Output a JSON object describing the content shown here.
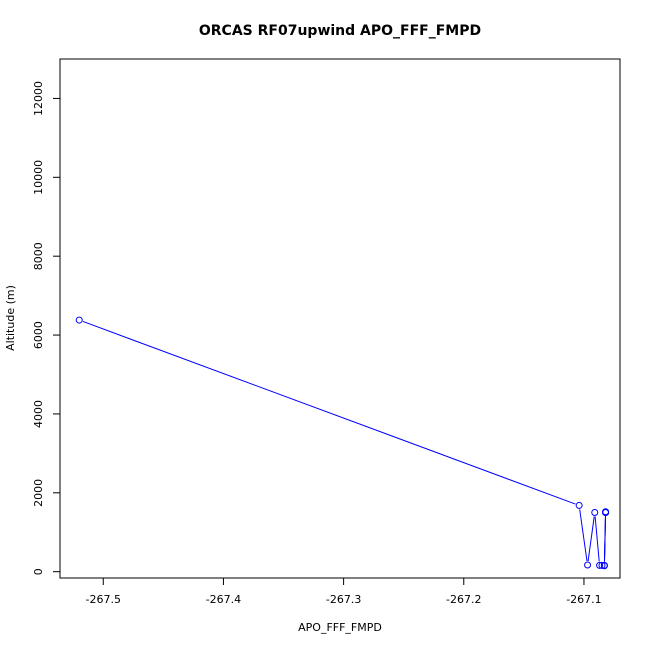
{
  "chart_data": {
    "type": "line",
    "title": "ORCAS RF07upwind APO_FFF_FMPD",
    "xlabel": "APO_FFF_FMPD",
    "ylabel": "Altitude (m)",
    "xlim": [
      -267.536,
      -267.07
    ],
    "ylim": [
      -160,
      13000
    ],
    "x_ticks": [
      -267.5,
      -267.4,
      -267.3,
      -267.2,
      -267.1
    ],
    "x_tick_labels": [
      "-267.5",
      "-267.4",
      "-267.3",
      "-267.2",
      "-267.1"
    ],
    "y_ticks": [
      0,
      2000,
      4000,
      6000,
      8000,
      10000,
      12000
    ],
    "y_tick_labels": [
      "0",
      "2000",
      "4000",
      "6000",
      "8000",
      "10000",
      "12000"
    ],
    "grid": false,
    "series": [
      {
        "color": "#0000ff",
        "marker": "open-circle",
        "x": [
          -267.52,
          -267.104,
          -267.097,
          -267.091,
          -267.087,
          -267.085,
          -267.083,
          -267.082,
          -267.082,
          -267.083,
          -267.082
        ],
        "y": [
          6380,
          1680,
          170,
          1500,
          160,
          160,
          150,
          1500,
          1520,
          160,
          1500
        ]
      }
    ]
  }
}
